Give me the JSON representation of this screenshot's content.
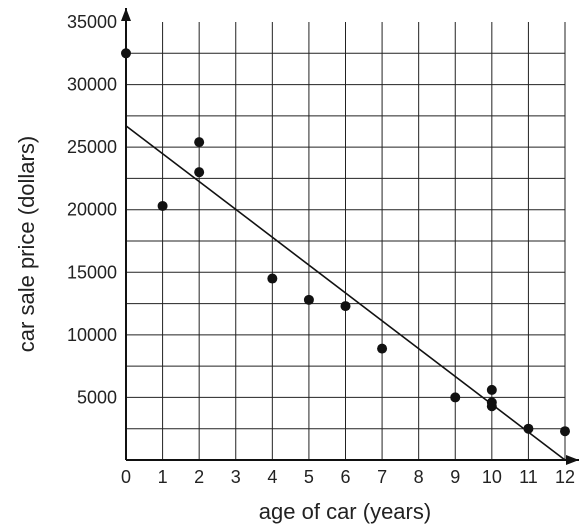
{
  "chart_data": {
    "type": "scatter",
    "xlabel": "age of car (years)",
    "ylabel": "car sale price (dollars)",
    "xlim": [
      0,
      12
    ],
    "ylim": [
      0,
      35000
    ],
    "x_ticks": [
      0,
      1,
      2,
      3,
      4,
      5,
      6,
      7,
      8,
      9,
      10,
      11,
      12
    ],
    "y_ticks": [
      5000,
      10000,
      15000,
      20000,
      25000,
      30000,
      35000
    ],
    "grid": true,
    "points": [
      {
        "x": 0,
        "y": 32500
      },
      {
        "x": 1,
        "y": 20300
      },
      {
        "x": 2,
        "y": 25400
      },
      {
        "x": 2,
        "y": 23000
      },
      {
        "x": 4,
        "y": 14500
      },
      {
        "x": 5,
        "y": 12800
      },
      {
        "x": 6,
        "y": 12300
      },
      {
        "x": 7,
        "y": 8900
      },
      {
        "x": 9,
        "y": 5000
      },
      {
        "x": 10,
        "y": 5600
      },
      {
        "x": 10,
        "y": 4600
      },
      {
        "x": 10,
        "y": 4300
      },
      {
        "x": 11,
        "y": 2500
      },
      {
        "x": 12,
        "y": 2300
      }
    ],
    "trend_line": {
      "x": [
        0,
        12
      ],
      "y": [
        26700,
        0
      ]
    }
  }
}
